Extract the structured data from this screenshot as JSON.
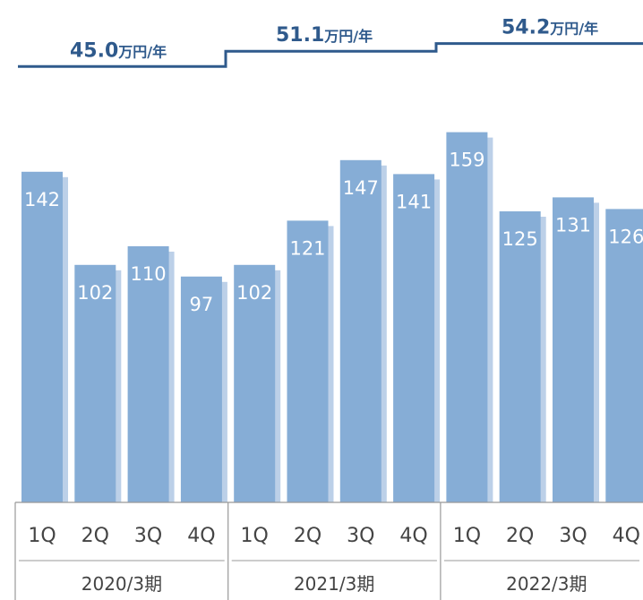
{
  "chart_data": {
    "type": "bar",
    "categories": [
      "1Q",
      "2Q",
      "3Q",
      "4Q",
      "1Q",
      "2Q",
      "3Q",
      "4Q",
      "1Q",
      "2Q",
      "3Q",
      "4Q"
    ],
    "groups": [
      {
        "label": "2020/3期",
        "span": 4
      },
      {
        "label": "2021/3期",
        "span": 4
      },
      {
        "label": "2022/3期",
        "span": 4
      }
    ],
    "series": [
      {
        "values": [
          142,
          102,
          110,
          97,
          102,
          121,
          147,
          141,
          159,
          125,
          131,
          126
        ]
      }
    ],
    "annual_averages": [
      {
        "value": "45.0",
        "unit": "万円/年",
        "group": 0
      },
      {
        "value": "51.1",
        "unit": "万円/年",
        "group": 1
      },
      {
        "value": "54.2",
        "unit": "万円/年",
        "group": 2
      }
    ],
    "ylim": [
      0,
      160
    ],
    "annual_scale": [
      20,
      60
    ],
    "colors": {
      "bar": "#86add6",
      "bar_shadow": "#bcd0e8",
      "step_line": "#2f5a8c",
      "average_text": "#2f5a8c",
      "bar_label": "#ffffff",
      "axis_text": "#444444",
      "frame": "#999999"
    }
  }
}
